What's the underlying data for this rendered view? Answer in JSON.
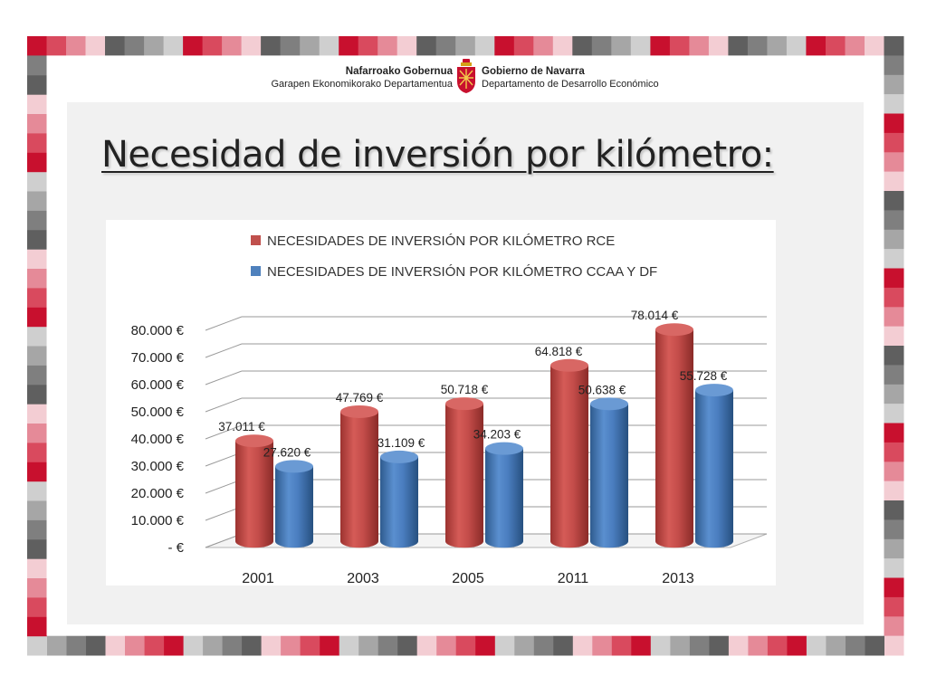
{
  "header": {
    "left_line1": "Nafarroako Gobernua",
    "left_line2": "Garapen Ekonomikorako Departamentua",
    "right_line1": "Gobierno de Navarra",
    "right_line2": "Departamento de Desarrollo Económico"
  },
  "slide": {
    "title": "Necesidad de inversión por kilómetro:"
  },
  "colors": {
    "red": "#c0504d",
    "blue": "#4f81bd",
    "frame_red": "#c8102e"
  },
  "chart_data": {
    "type": "bar",
    "title": "",
    "xlabel": "",
    "ylabel": "",
    "categories": [
      "2001",
      "2003",
      "2005",
      "2011",
      "2013"
    ],
    "series": [
      {
        "name": "NECESIDADES DE INVERSIÓN POR KILÓMETRO RCE",
        "color": "#c0504d",
        "values": [
          37011,
          47769,
          50718,
          64818,
          78014
        ],
        "labels": [
          "37.011 €",
          "47.769 €",
          "50.718 €",
          "64.818 €",
          "78.014 €"
        ]
      },
      {
        "name": "NECESIDADES DE INVERSIÓN POR KILÓMETRO CCAA Y DF",
        "color": "#4f81bd",
        "values": [
          27620,
          31109,
          34203,
          50638,
          55728
        ],
        "labels": [
          "27.620 €",
          "31.109 €",
          "34.203 €",
          "50.638 €",
          "55.728 €"
        ]
      }
    ],
    "ylim": [
      0,
      80000
    ],
    "yticks": [
      0,
      10000,
      20000,
      30000,
      40000,
      50000,
      60000,
      70000,
      80000
    ],
    "ytick_labels": [
      "-  €",
      "10.000 €",
      "20.000 €",
      "30.000 €",
      "40.000 €",
      "50.000 €",
      "60.000 €",
      "70.000 €",
      "80.000 €"
    ],
    "grid": true,
    "legend": "top",
    "style": "3d-cylinder"
  }
}
